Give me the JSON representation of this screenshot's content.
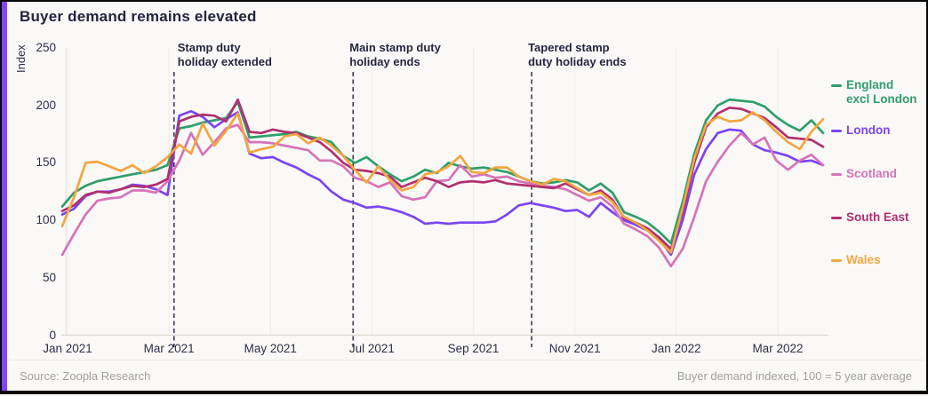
{
  "header": {
    "title": "Buyer demand remains elevated"
  },
  "footer": {
    "source": "Source: Zoopla Research",
    "note": "Buyer demand indexed, 100 = 5 year average"
  },
  "chart_data": {
    "type": "line",
    "title": "Buyer demand remains elevated",
    "ylabel": "Index",
    "xlabel": "",
    "ylim": [
      0,
      250
    ],
    "y_ticks": [
      250,
      200,
      150,
      100,
      50,
      0
    ],
    "x_ticks": [
      "Jan 2021",
      "Mar 2021",
      "May 2021",
      "Jul 2021",
      "Sep 2021",
      "Nov 2021",
      "Jan 2022",
      "Mar 2022"
    ],
    "x_unit": "weekly index points, Jan 2021 - Mar 2022",
    "grid": "vertical-only",
    "legend_position": "right",
    "annotations": [
      {
        "lines": [
          "Stamp duty",
          "holiday extended"
        ],
        "week": 9.55
      },
      {
        "lines": [
          "Main stamp duty",
          "holiday ends"
        ],
        "week": 24.85
      },
      {
        "lines": [
          "Tapered stamp",
          "duty holiday ends"
        ],
        "week": 40.1
      }
    ],
    "series": [
      {
        "name": "England excl London",
        "legend_lines": [
          "England",
          "excl London"
        ],
        "color": "#2f9e6b",
        "values": [
          112,
          124,
          130,
          134,
          136,
          138,
          140,
          142,
          144,
          148,
          180,
          182,
          185,
          187,
          189,
          203,
          172,
          173,
          174,
          175,
          177,
          173,
          171,
          168,
          156,
          150,
          155,
          147,
          140,
          134,
          138,
          144,
          141,
          150,
          147,
          145,
          146,
          144,
          142,
          138,
          134,
          132,
          133,
          135,
          133,
          126,
          132,
          124,
          107,
          103,
          98,
          90,
          80,
          116,
          158,
          187,
          200,
          205,
          204,
          203,
          199,
          190,
          183,
          178,
          187,
          176
        ]
      },
      {
        "name": "London",
        "legend_lines": [
          "London"
        ],
        "color": "#7a45f2",
        "values": [
          105,
          110,
          121,
          125,
          125,
          127,
          131,
          130,
          127,
          122,
          191,
          195,
          190,
          181,
          188,
          194,
          158,
          154,
          155,
          150,
          146,
          140,
          135,
          125,
          118,
          115,
          111,
          112,
          110,
          107,
          103,
          97,
          98,
          97,
          98,
          98,
          98,
          99,
          105,
          113,
          115,
          113,
          111,
          108,
          109,
          103,
          115,
          107,
          100,
          96,
          91,
          84,
          70,
          100,
          140,
          162,
          176,
          179,
          178,
          166,
          161,
          159,
          156,
          151,
          152,
          148
        ]
      },
      {
        "name": "Scotland",
        "legend_lines": [
          "Scotland"
        ],
        "color": "#d673b8",
        "values": [
          70,
          88,
          105,
          117,
          119,
          120,
          126,
          126,
          124,
          134,
          152,
          176,
          157,
          168,
          180,
          183,
          168,
          168,
          167,
          165,
          163,
          161,
          152,
          152,
          147,
          137,
          134,
          129,
          133,
          121,
          118,
          120,
          134,
          135,
          148,
          138,
          140,
          137,
          138,
          134,
          132,
          130,
          129,
          127,
          122,
          117,
          120,
          112,
          97,
          92,
          86,
          76,
          60,
          75,
          103,
          134,
          151,
          165,
          176,
          166,
          172,
          152,
          144,
          152,
          157,
          148
        ]
      },
      {
        "name": "South East",
        "legend_lines": [
          "South East"
        ],
        "color": "#b13070",
        "values": [
          108,
          113,
          122,
          125,
          124,
          127,
          130,
          129,
          131,
          136,
          186,
          190,
          192,
          191,
          186,
          205,
          177,
          176,
          179,
          177,
          176,
          172,
          168,
          160,
          150,
          144,
          143,
          141,
          138,
          129,
          133,
          137,
          134,
          129,
          133,
          134,
          133,
          135,
          132,
          131,
          130,
          129,
          128,
          132,
          127,
          122,
          126,
          118,
          102,
          98,
          93,
          85,
          75,
          107,
          150,
          181,
          193,
          198,
          197,
          193,
          189,
          181,
          172,
          171,
          170,
          164
        ]
      },
      {
        "name": "Wales",
        "legend_lines": [
          "Wales"
        ],
        "color": "#f2a63f",
        "values": [
          95,
          120,
          150,
          151,
          147,
          143,
          148,
          141,
          147,
          155,
          166,
          158,
          184,
          165,
          178,
          193,
          159,
          162,
          164,
          173,
          175,
          167,
          172,
          165,
          156,
          144,
          133,
          147,
          135,
          126,
          129,
          140,
          142,
          147,
          156,
          142,
          141,
          146,
          146,
          138,
          134,
          131,
          136,
          134,
          128,
          122,
          124,
          116,
          103,
          98,
          91,
          82,
          72,
          111,
          154,
          183,
          190,
          186,
          187,
          194,
          187,
          177,
          168,
          162,
          177,
          188
        ]
      }
    ]
  }
}
